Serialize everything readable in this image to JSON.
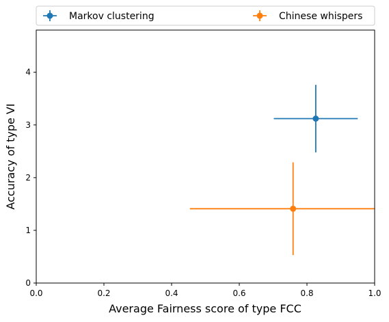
{
  "chart_data": {
    "type": "scatter",
    "title": "",
    "xlabel": "Average Fairness score of type FCC",
    "ylabel": "Accuracy of type VI",
    "xlim": [
      0.0,
      1.0
    ],
    "ylim": [
      0.0,
      4.8
    ],
    "xticks": [
      "0.0",
      "0.2",
      "0.4",
      "0.6",
      "0.8",
      "1.0"
    ],
    "yticks": [
      "0",
      "1",
      "2",
      "3",
      "4"
    ],
    "grid": false,
    "legend_placement": "top, above plot",
    "series": [
      {
        "name": "Markov clustering",
        "color": "#1f77b4",
        "x": 0.826,
        "y": 3.12,
        "xerr": 0.124,
        "yerr": 0.64
      },
      {
        "name": "Chinese whispers",
        "color": "#ff7f0e",
        "x": 0.759,
        "y": 1.41,
        "xerr": 0.305,
        "yerr": 0.88
      }
    ]
  }
}
